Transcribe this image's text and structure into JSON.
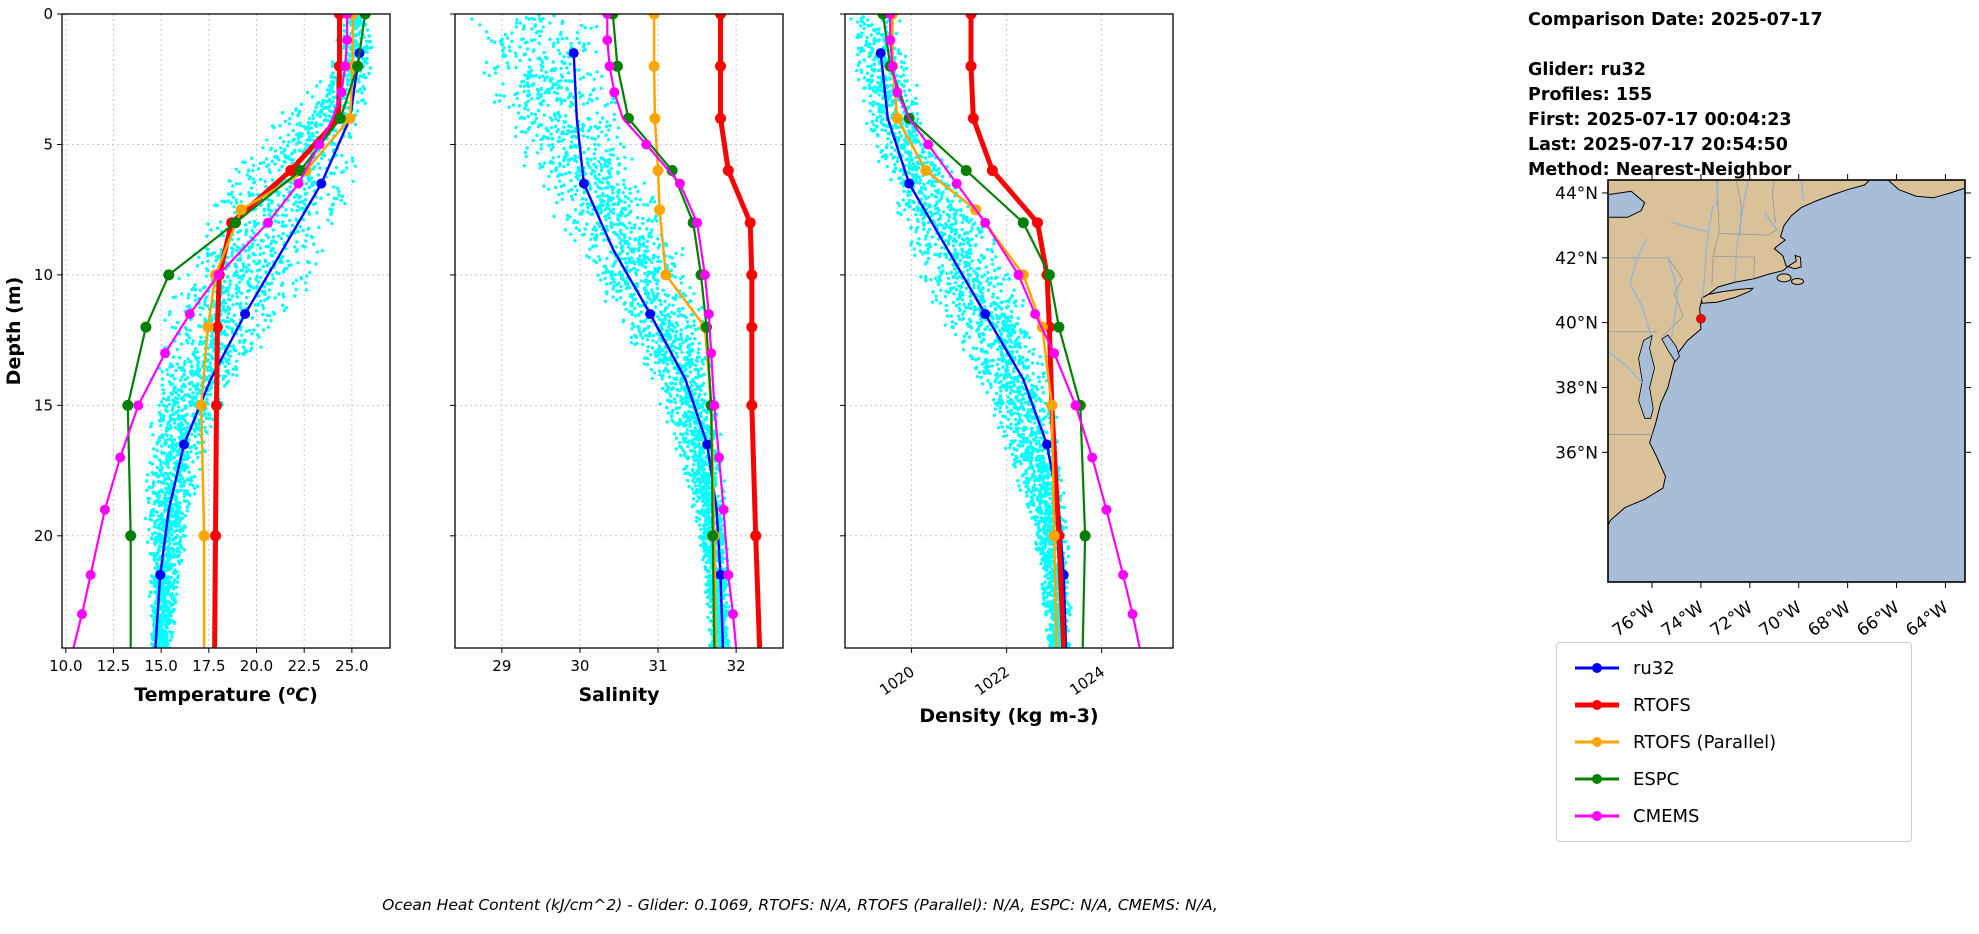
{
  "info_panel": {
    "title": "Comparison Date: 2025-07-17",
    "lines": [
      "Glider: ru32",
      "Profiles: 155",
      "First: 2025-07-17 00:04:23",
      "Last: 2025-07-17 20:54:50",
      "Method: Nearest-Neighbor"
    ]
  },
  "caption": "Ocean Heat Content (kJ/cm^2) - Glider: 0.1069,  RTOFS: N/A,  RTOFS (Parallel): N/A,  ESPC: N/A,  CMEMS: N/A,",
  "legend": {
    "items": [
      {
        "label": "ru32",
        "color": "#0000ff",
        "lw": 3
      },
      {
        "label": "RTOFS",
        "color": "#ff0000",
        "lw": 5
      },
      {
        "label": "RTOFS (Parallel)",
        "color": "#ffa500",
        "lw": 3
      },
      {
        "label": "ESPC",
        "color": "#008000",
        "lw": 3
      },
      {
        "label": "CMEMS",
        "color": "#ff00ff",
        "lw": 3
      }
    ]
  },
  "depth_axis": {
    "label": "Depth (m)",
    "ticks": [
      0,
      5,
      10,
      15,
      20
    ],
    "min": 0,
    "max": 24.3
  },
  "map": {
    "lat_ticks": [
      "44°N",
      "42°N",
      "40°N",
      "38°N",
      "36°N"
    ],
    "lat_tick_values": [
      44,
      42,
      40,
      38,
      36
    ],
    "lon_ticks": [
      "76°W",
      "74°W",
      "72°W",
      "70°W",
      "68°W",
      "66°W",
      "64°W"
    ],
    "lon_tick_values": [
      -76,
      -74,
      -72,
      -70,
      -68,
      -66,
      -64
    ],
    "land_color": "#d9c29a",
    "ocean_color": "#a8bdd8",
    "marker": {
      "lon": -74.0,
      "lat": 40.12,
      "color": "#ff0000"
    }
  },
  "chart_data": [
    {
      "id": "temperature",
      "type": "line+scatter",
      "xlabel": "Temperature (°C)",
      "xlabel_parts": [
        {
          "t": "Temperature ("
        },
        {
          "t": "o",
          "sup": true,
          "italic": true
        },
        {
          "t": "C",
          "italic": true,
          "after_sup": true
        },
        {
          "t": ")"
        }
      ],
      "xlim": [
        9.8,
        27.0
      ],
      "xticks": [
        "10.0",
        "12.5",
        "15.0",
        "17.5",
        "20.0",
        "22.5",
        "25.0"
      ],
      "xtick_values": [
        10.0,
        12.5,
        15.0,
        17.5,
        20.0,
        22.5,
        25.0
      ],
      "rotate_xticks": false,
      "scatter_color": "#00ffff",
      "scatter_name": "glider profiles cloud",
      "scatter": [
        [
          0.5,
          24.3,
          26.2
        ],
        [
          2,
          23.8,
          26.3
        ],
        [
          4,
          21.0,
          26.0
        ],
        [
          6,
          18.5,
          25.6
        ],
        [
          8,
          16.6,
          24.6
        ],
        [
          10,
          15.4,
          23.2
        ],
        [
          12,
          14.8,
          21.3
        ],
        [
          14,
          14.4,
          19.2
        ],
        [
          16,
          14.2,
          17.8
        ],
        [
          18,
          14.1,
          17.0
        ],
        [
          20,
          14.1,
          16.4
        ],
        [
          22,
          14.3,
          16.0
        ],
        [
          24,
          14.4,
          15.6
        ]
      ],
      "series": [
        {
          "name": "ru32",
          "color": "#0000ff",
          "width": 2.4,
          "marker_size": 5,
          "depths": [
            1.5,
            4,
            6.5,
            9,
            11.5,
            14,
            16.5,
            19,
            21.5,
            24.3
          ],
          "values": [
            25.4,
            24.9,
            23.4,
            21.4,
            19.4,
            17.6,
            16.2,
            15.4,
            14.95,
            14.7
          ],
          "markers": [
            1.5,
            6.5,
            11.5,
            16.5,
            21.5
          ]
        },
        {
          "name": "RTOFS",
          "color": "#ff0000",
          "width": 5,
          "marker_size": 5.5,
          "depths": [
            0,
            2,
            4,
            6,
            8,
            10,
            12,
            15,
            20,
            24.3
          ],
          "values": [
            24.35,
            24.35,
            24.3,
            21.8,
            18.7,
            18.05,
            17.95,
            17.9,
            17.85,
            17.8
          ],
          "markers": [
            0,
            2,
            4,
            6,
            8,
            10,
            12,
            15,
            20
          ]
        },
        {
          "name": "RTOFS (Parallel)",
          "color": "#ffa500",
          "width": 2.5,
          "marker_size": 5.5,
          "depths": [
            0,
            2,
            4,
            6,
            7.5,
            10,
            12,
            15,
            20,
            24.3
          ],
          "values": [
            25.05,
            25.05,
            24.9,
            22.6,
            19.2,
            17.85,
            17.45,
            17.1,
            17.25,
            17.25
          ],
          "markers": [
            0,
            2,
            4,
            6,
            7.5,
            10,
            12,
            15,
            20
          ]
        },
        {
          "name": "ESPC",
          "color": "#008000",
          "width": 2.2,
          "marker_size": 5.5,
          "depths": [
            0,
            2,
            4,
            6,
            8,
            10,
            12,
            15,
            20,
            24.3
          ],
          "values": [
            25.7,
            25.3,
            24.4,
            22.3,
            18.9,
            15.4,
            14.2,
            13.25,
            13.4,
            13.4
          ],
          "markers": [
            0,
            2,
            4,
            6,
            8,
            10,
            12,
            15,
            20
          ]
        },
        {
          "name": "CMEMS",
          "color": "#ff00ff",
          "width": 2.2,
          "marker_size": 5,
          "depths": [
            0,
            1,
            2,
            3,
            4,
            5,
            6.5,
            8,
            10,
            11.5,
            13,
            15,
            17,
            19,
            21.5,
            23,
            24.3
          ],
          "values": [
            24.75,
            24.75,
            24.65,
            24.45,
            24.0,
            23.3,
            22.2,
            20.6,
            18.0,
            16.5,
            15.2,
            13.8,
            12.85,
            12.05,
            11.3,
            10.85,
            10.4
          ],
          "markers": [
            0,
            1,
            2,
            3,
            5,
            6.5,
            8,
            10,
            11.5,
            13,
            15,
            17,
            19,
            21.5,
            23
          ]
        }
      ]
    },
    {
      "id": "salinity",
      "type": "line+scatter",
      "xlabel": "Salinity",
      "xlabel_parts": [
        {
          "t": "Salinity"
        }
      ],
      "xlim": [
        28.4,
        32.6
      ],
      "xticks": [
        "29",
        "30",
        "31",
        "32"
      ],
      "xtick_values": [
        29,
        30,
        31,
        32
      ],
      "rotate_xticks": false,
      "scatter_color": "#00ffff",
      "scatter_name": "glider profiles cloud",
      "scatter": [
        [
          0.5,
          28.55,
          30.3
        ],
        [
          2,
          28.6,
          30.45
        ],
        [
          4,
          28.9,
          30.6
        ],
        [
          6,
          29.3,
          30.9
        ],
        [
          8,
          29.7,
          31.2
        ],
        [
          10,
          30.1,
          31.45
        ],
        [
          12,
          30.5,
          31.65
        ],
        [
          14,
          30.9,
          31.75
        ],
        [
          16,
          31.15,
          31.82
        ],
        [
          18,
          31.35,
          31.87
        ],
        [
          20,
          31.5,
          31.9
        ],
        [
          22,
          31.6,
          31.92
        ],
        [
          24,
          31.65,
          31.93
        ]
      ],
      "series": [
        {
          "name": "ru32",
          "color": "#0000ff",
          "width": 2.4,
          "marker_size": 5,
          "depths": [
            1.5,
            4,
            6.5,
            9,
            11.5,
            14,
            16.5,
            19,
            21.5,
            24.3
          ],
          "values": [
            29.92,
            29.96,
            30.05,
            30.42,
            30.9,
            31.35,
            31.63,
            31.75,
            31.8,
            31.83
          ],
          "markers": [
            1.5,
            6.5,
            11.5,
            16.5,
            21.5
          ]
        },
        {
          "name": "RTOFS",
          "color": "#ff0000",
          "width": 5,
          "marker_size": 5.5,
          "depths": [
            0,
            2,
            4,
            6,
            8,
            10,
            12,
            15,
            20,
            24.3
          ],
          "values": [
            31.8,
            31.8,
            31.8,
            31.9,
            32.18,
            32.2,
            32.2,
            32.2,
            32.25,
            32.3
          ],
          "markers": [
            0,
            2,
            4,
            6,
            8,
            10,
            12,
            15,
            20
          ]
        },
        {
          "name": "RTOFS (Parallel)",
          "color": "#ffa500",
          "width": 2.5,
          "marker_size": 5.5,
          "depths": [
            0,
            2,
            4,
            6,
            7.5,
            10,
            12,
            15,
            20,
            24.3
          ],
          "values": [
            30.95,
            30.95,
            30.96,
            31.0,
            31.02,
            31.1,
            31.6,
            31.68,
            31.72,
            31.74
          ],
          "markers": [
            0,
            2,
            4,
            6,
            7.5,
            10,
            12,
            15,
            20
          ]
        },
        {
          "name": "ESPC",
          "color": "#008000",
          "width": 2.2,
          "marker_size": 5.5,
          "depths": [
            0,
            2,
            4,
            6,
            8,
            10,
            12,
            15,
            20,
            24.3
          ],
          "values": [
            30.42,
            30.48,
            30.62,
            31.18,
            31.45,
            31.55,
            31.62,
            31.68,
            31.7,
            31.72
          ],
          "markers": [
            0,
            2,
            4,
            6,
            8,
            10,
            12,
            15,
            20
          ]
        },
        {
          "name": "CMEMS",
          "color": "#ff00ff",
          "width": 2.2,
          "marker_size": 5,
          "depths": [
            0,
            1,
            2,
            3,
            4,
            5,
            6.5,
            8,
            10,
            11.5,
            13,
            15,
            17,
            19,
            21.5,
            23,
            24.3
          ],
          "values": [
            30.35,
            30.35,
            30.38,
            30.44,
            30.55,
            30.85,
            31.28,
            31.5,
            31.6,
            31.65,
            31.68,
            31.72,
            31.78,
            31.84,
            31.9,
            31.96,
            32.0
          ],
          "markers": [
            0,
            1,
            2,
            3,
            5,
            6.5,
            8,
            10,
            11.5,
            13,
            15,
            17,
            19,
            21.5,
            23
          ]
        }
      ]
    },
    {
      "id": "density",
      "type": "line+scatter",
      "xlabel": "Density (kg m-3)",
      "xlabel_parts": [
        {
          "t": "Density (kg m-3)"
        }
      ],
      "xlim": [
        1018.6,
        1025.5
      ],
      "xticks": [
        "1020",
        "1022",
        "1024"
      ],
      "xtick_values": [
        1020,
        1022,
        1024
      ],
      "rotate_xticks": true,
      "scatter_color": "#00ffff",
      "scatter_name": "glider profiles cloud",
      "scatter": [
        [
          0.5,
          1018.7,
          1019.9
        ],
        [
          2,
          1018.75,
          1020.0
        ],
        [
          4,
          1019.0,
          1020.3
        ],
        [
          6,
          1019.3,
          1020.9
        ],
        [
          8,
          1019.7,
          1021.6
        ],
        [
          10,
          1020.1,
          1022.2
        ],
        [
          12,
          1020.7,
          1022.7
        ],
        [
          14,
          1021.3,
          1023.0
        ],
        [
          16,
          1021.8,
          1023.15
        ],
        [
          18,
          1022.2,
          1023.25
        ],
        [
          20,
          1022.5,
          1023.3
        ],
        [
          22,
          1022.7,
          1023.35
        ],
        [
          24,
          1022.8,
          1023.4
        ]
      ],
      "series": [
        {
          "name": "ru32",
          "color": "#0000ff",
          "width": 2.4,
          "marker_size": 5,
          "depths": [
            1.5,
            4,
            6.5,
            9,
            11.5,
            14,
            16.5,
            19,
            21.5,
            24.3
          ],
          "values": [
            1019.35,
            1019.5,
            1019.95,
            1020.75,
            1021.55,
            1022.35,
            1022.85,
            1023.1,
            1023.2,
            1023.25
          ],
          "markers": [
            1.5,
            6.5,
            11.5,
            16.5,
            21.5
          ]
        },
        {
          "name": "RTOFS",
          "color": "#ff0000",
          "width": 5,
          "marker_size": 5.5,
          "depths": [
            0,
            2,
            4,
            6,
            8,
            10,
            12,
            15,
            20,
            24.3
          ],
          "values": [
            1021.25,
            1021.25,
            1021.3,
            1021.7,
            1022.65,
            1022.85,
            1022.9,
            1022.95,
            1023.1,
            1023.2
          ],
          "markers": [
            0,
            2,
            4,
            6,
            8,
            10,
            12,
            15,
            20
          ]
        },
        {
          "name": "RTOFS (Parallel)",
          "color": "#ffa500",
          "width": 2.5,
          "marker_size": 5.5,
          "depths": [
            0,
            2,
            4,
            6,
            7.5,
            10,
            12,
            15,
            20,
            24.3
          ],
          "values": [
            1019.6,
            1019.6,
            1019.7,
            1020.3,
            1021.35,
            1022.35,
            1022.75,
            1022.95,
            1023.0,
            1023.05
          ],
          "markers": [
            0,
            2,
            4,
            6,
            7.5,
            10,
            12,
            15,
            20
          ]
        },
        {
          "name": "ESPC",
          "color": "#008000",
          "width": 2.2,
          "marker_size": 5.5,
          "depths": [
            0,
            2,
            4,
            6,
            8,
            10,
            12,
            15,
            20,
            24.3
          ],
          "values": [
            1019.4,
            1019.55,
            1019.95,
            1021.15,
            1022.35,
            1022.9,
            1023.1,
            1023.55,
            1023.65,
            1023.6
          ],
          "markers": [
            0,
            2,
            4,
            6,
            8,
            10,
            12,
            15,
            20
          ]
        },
        {
          "name": "CMEMS",
          "color": "#ff00ff",
          "width": 2.2,
          "marker_size": 5,
          "depths": [
            0,
            1,
            2,
            3,
            4,
            5,
            6.5,
            8,
            10,
            11.5,
            13,
            15,
            17,
            19,
            21.5,
            23,
            24.3
          ],
          "values": [
            1019.55,
            1019.55,
            1019.6,
            1019.7,
            1019.95,
            1020.35,
            1020.95,
            1021.55,
            1022.25,
            1022.6,
            1023.0,
            1023.45,
            1023.8,
            1024.1,
            1024.45,
            1024.65,
            1024.8
          ],
          "markers": [
            0,
            1,
            2,
            3,
            5,
            6.5,
            8,
            10,
            11.5,
            13,
            15,
            17,
            19,
            21.5,
            23
          ]
        }
      ]
    }
  ]
}
